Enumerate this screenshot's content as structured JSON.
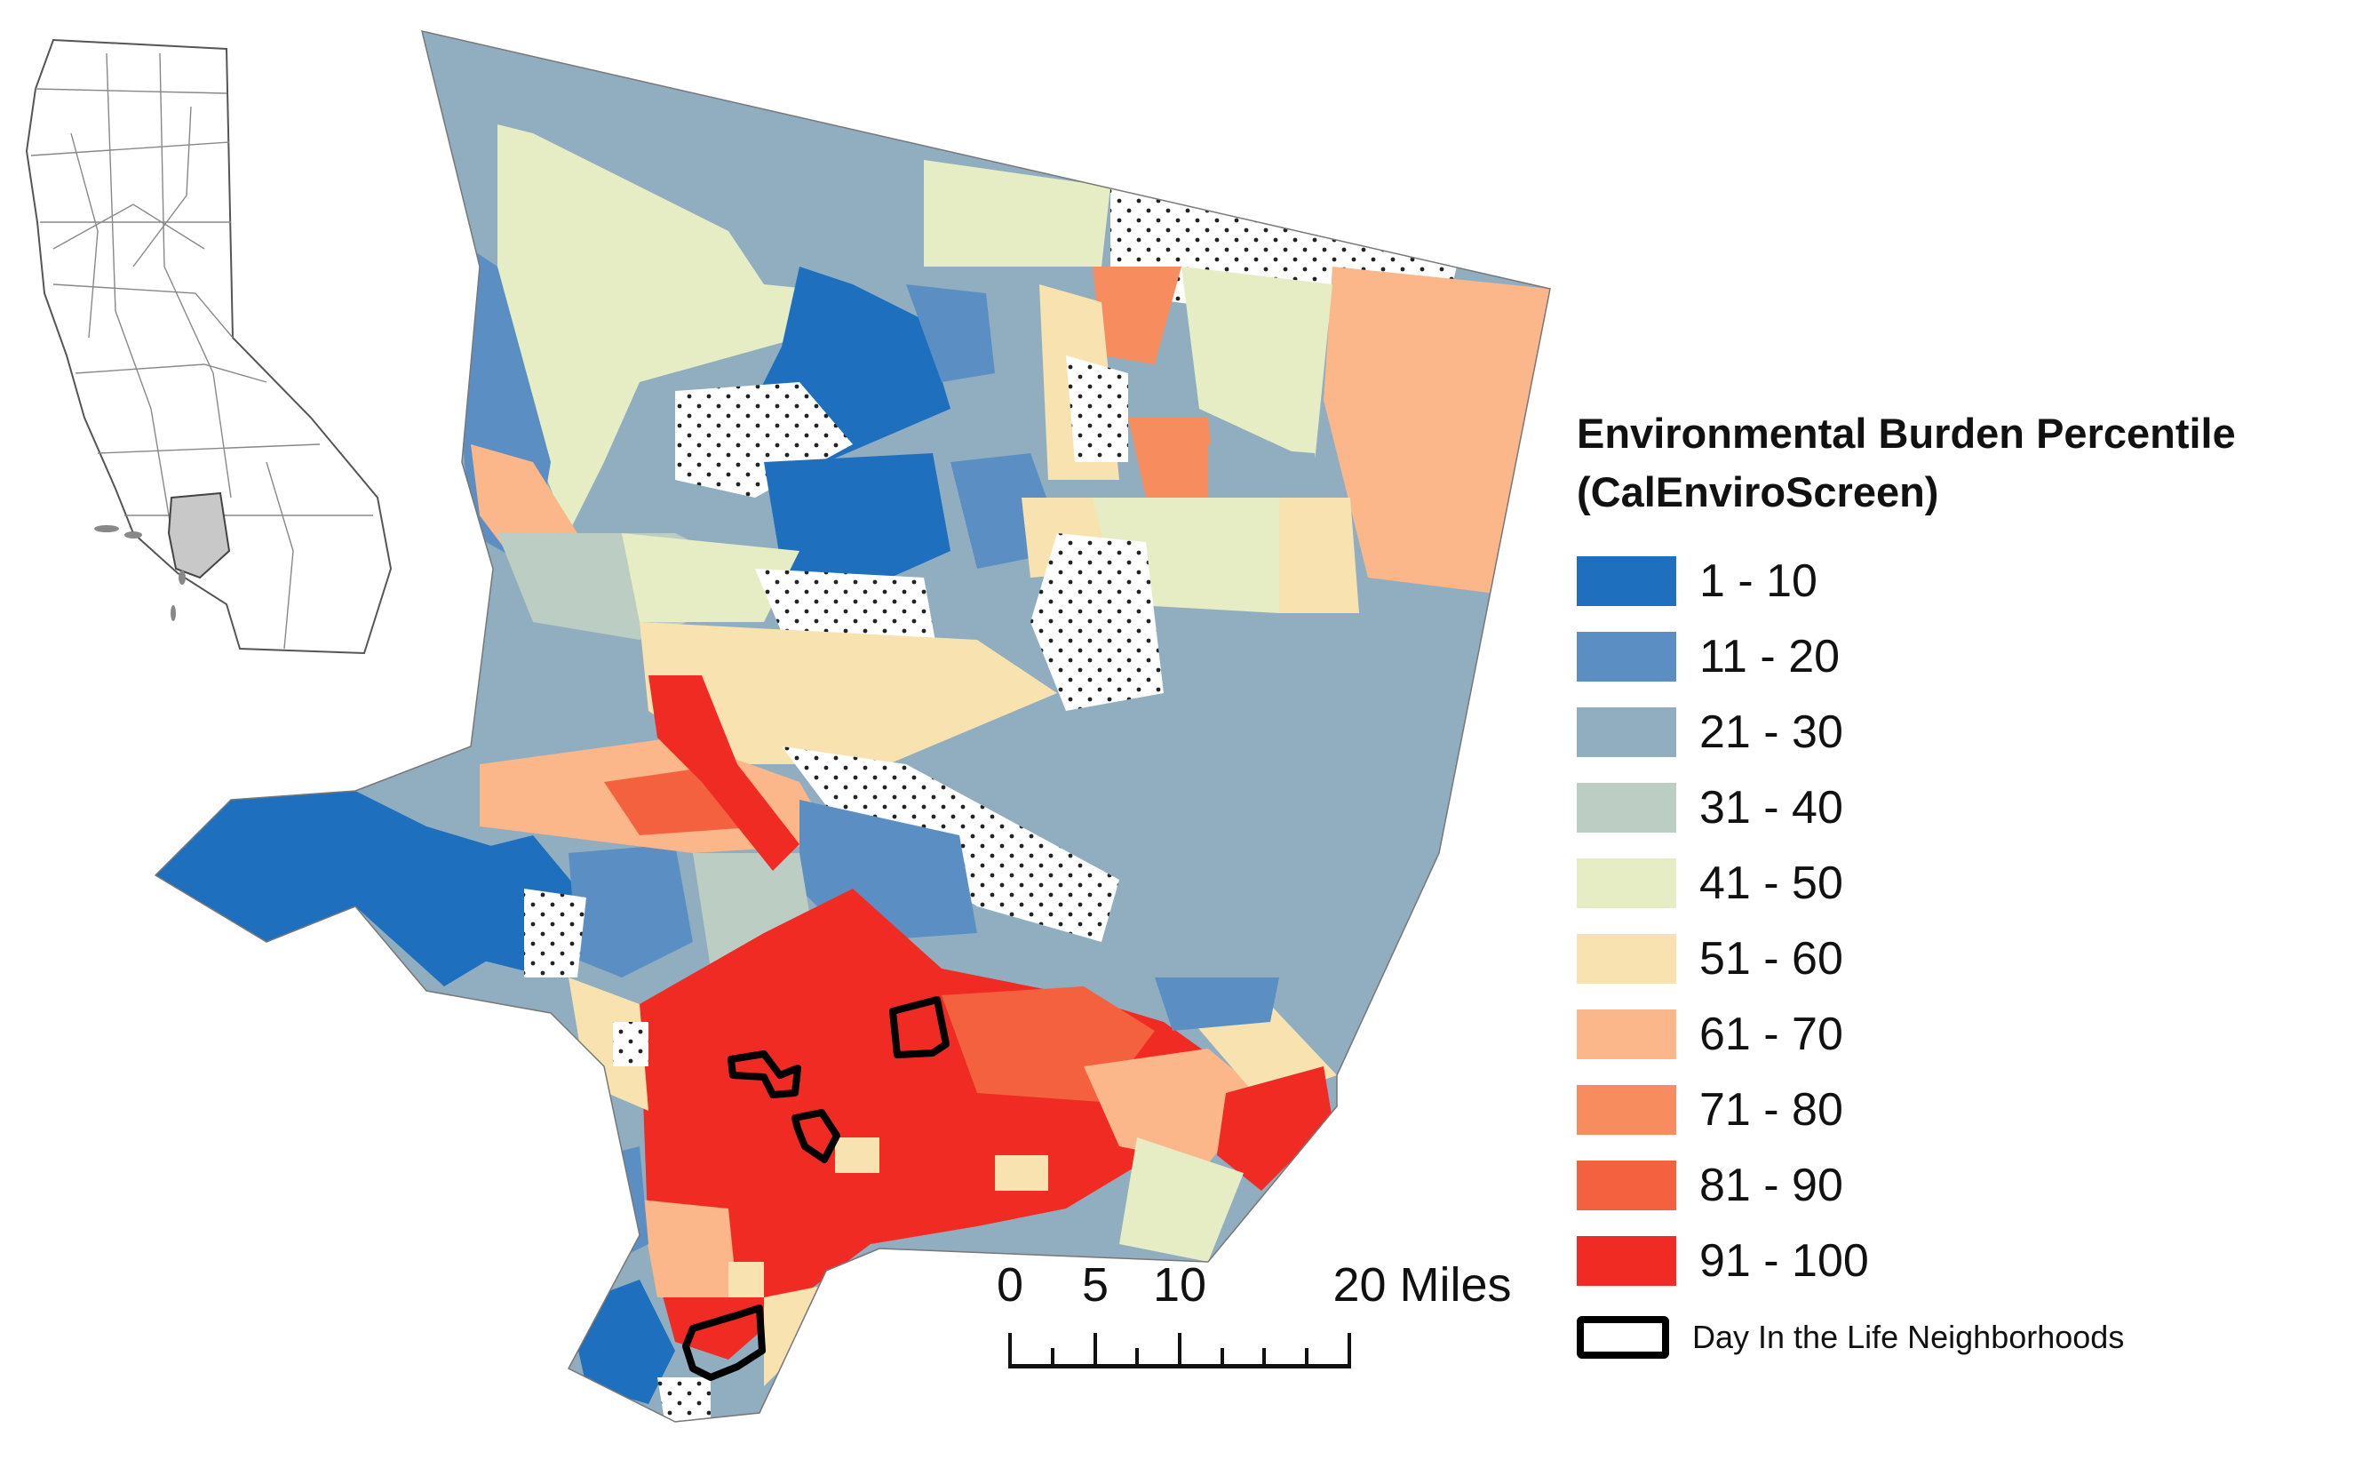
{
  "map": {
    "legend": {
      "title_line1": "Environmental Burden Percentile",
      "title_line2": "(CalEnviroScreen)",
      "classes": [
        {
          "label": "1 - 10",
          "color": "#1f6fbf"
        },
        {
          "label": "11 - 20",
          "color": "#5b8fc4"
        },
        {
          "label": "21 - 30",
          "color": "#90aec0"
        },
        {
          "label": "31 - 40",
          "color": "#bccdc3"
        },
        {
          "label": "41 - 50",
          "color": "#e6edc4"
        },
        {
          "label": "51 - 60",
          "color": "#f8e3b0"
        },
        {
          "label": "61 - 70",
          "color": "#fbb68a"
        },
        {
          "label": "71 - 80",
          "color": "#f78d5f"
        },
        {
          "label": "81 - 90",
          "color": "#f4613f"
        },
        {
          "label": "91 - 100",
          "color": "#f02b23"
        }
      ],
      "neighborhoods_label": "Day In the Life Neighborhoods"
    },
    "scale_bar": {
      "ticks": [
        "0",
        "5",
        "10",
        "20 Miles"
      ]
    },
    "inset": {
      "highlight_color": "#c8c8c8"
    },
    "no_data_pattern": "dots"
  }
}
